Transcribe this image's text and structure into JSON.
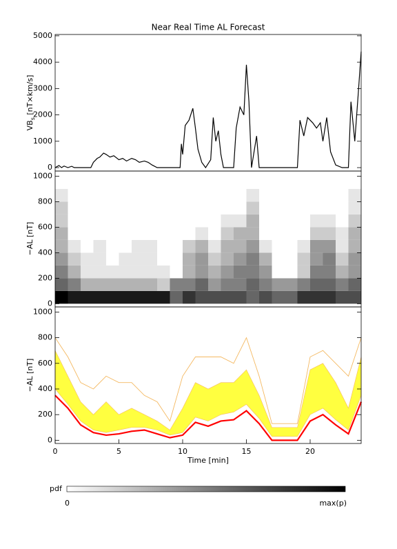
{
  "chart_data": [
    {
      "type": "line",
      "title": "Near Real Time AL Forecast",
      "ylabel": [
        "VB",
        "s",
        " [nT×km/s]"
      ],
      "x": [
        0,
        0.3,
        0.5,
        0.7,
        1.0,
        1.3,
        1.5,
        2.8,
        3.0,
        3.3,
        3.5,
        3.8,
        4.0,
        4.3,
        4.6,
        5.0,
        5.3,
        5.6,
        6.0,
        6.3,
        6.6,
        7.0,
        7.3,
        7.6,
        8.0,
        9.8,
        9.9,
        10.0,
        10.2,
        10.5,
        10.8,
        11.0,
        11.2,
        11.5,
        11.8,
        12.2,
        12.4,
        12.6,
        12.8,
        13.0,
        13.2,
        14.0,
        14.2,
        14.5,
        14.8,
        15.0,
        15.2,
        15.4,
        15.8,
        16.0,
        19.0,
        19.2,
        19.5,
        19.8,
        20.2,
        20.5,
        20.8,
        21.0,
        21.3,
        21.6,
        22.0,
        22.5,
        23.0,
        23.2,
        23.5,
        23.8,
        24.0
      ],
      "values": [
        0,
        80,
        0,
        60,
        0,
        50,
        0,
        0,
        200,
        350,
        400,
        550,
        500,
        400,
        450,
        300,
        350,
        250,
        350,
        300,
        200,
        250,
        200,
        100,
        0,
        0,
        900,
        500,
        1600,
        1800,
        2250,
        1500,
        700,
        200,
        0,
        300,
        1900,
        1000,
        1400,
        500,
        0,
        0,
        1500,
        2300,
        2000,
        3900,
        2500,
        0,
        1200,
        0,
        0,
        1800,
        1200,
        1900,
        1700,
        1500,
        1700,
        1000,
        1900,
        600,
        100,
        0,
        0,
        2500,
        1000,
        3000,
        4400
      ],
      "color": "#000000",
      "xlim": [
        0,
        24
      ],
      "ylim": [
        -130,
        5050
      ],
      "yticks": [
        0,
        1000,
        2000,
        3000,
        4000,
        5000
      ]
    },
    {
      "type": "heatmap",
      "ylabel": "−AL [nT]",
      "xbins": [
        0,
        1,
        2,
        3,
        4,
        5,
        6,
        7,
        8,
        9,
        10,
        11,
        12,
        13,
        14,
        15,
        16,
        17,
        18,
        19,
        20,
        21,
        22,
        23,
        24
      ],
      "ybins": [
        0,
        100,
        200,
        300,
        400,
        500,
        600,
        700,
        800,
        900,
        1000
      ],
      "z": [
        [
          1,
          0.6,
          0.5,
          0.4,
          0.3,
          0.3,
          0.2,
          0.2,
          0.1,
          0
        ],
        [
          0.9,
          0.5,
          0.3,
          0.2,
          0.1,
          0,
          0,
          0,
          0,
          0
        ],
        [
          0.9,
          0.3,
          0.1,
          0.1,
          0,
          0,
          0,
          0,
          0,
          0
        ],
        [
          0.9,
          0.3,
          0.1,
          0.1,
          0.1,
          0,
          0,
          0,
          0,
          0
        ],
        [
          0.9,
          0.3,
          0.1,
          0,
          0,
          0,
          0,
          0,
          0,
          0
        ],
        [
          0.9,
          0.3,
          0.1,
          0.1,
          0,
          0,
          0,
          0,
          0,
          0
        ],
        [
          0.9,
          0.3,
          0.1,
          0.1,
          0.1,
          0,
          0,
          0,
          0,
          0
        ],
        [
          0.9,
          0.3,
          0.1,
          0.1,
          0.1,
          0,
          0,
          0,
          0,
          0
        ],
        [
          0.9,
          0.2,
          0.1,
          0,
          0,
          0,
          0,
          0,
          0,
          0
        ],
        [
          0.6,
          0.5,
          0,
          0,
          0,
          0,
          0,
          0,
          0,
          0
        ],
        [
          0.8,
          0.5,
          0.3,
          0.3,
          0.2,
          0,
          0,
          0,
          0,
          0
        ],
        [
          0.7,
          0.6,
          0.4,
          0.4,
          0.3,
          0.1,
          0,
          0,
          0,
          0
        ],
        [
          0.7,
          0.4,
          0.3,
          0.2,
          0.1,
          0,
          0,
          0,
          0,
          0
        ],
        [
          0.7,
          0.5,
          0.4,
          0.3,
          0.3,
          0.2,
          0.1,
          0,
          0,
          0
        ],
        [
          0.7,
          0.5,
          0.5,
          0.4,
          0.3,
          0.3,
          0.1,
          0,
          0,
          0
        ],
        [
          0.6,
          0.6,
          0.5,
          0.5,
          0.4,
          0.3,
          0.3,
          0.2,
          0.1,
          0
        ],
        [
          0.7,
          0.5,
          0.4,
          0.3,
          0.1,
          0,
          0,
          0,
          0,
          0
        ],
        [
          0.6,
          0.4,
          0,
          0,
          0,
          0,
          0,
          0,
          0,
          0
        ],
        [
          0.6,
          0.4,
          0,
          0,
          0,
          0,
          0,
          0,
          0,
          0
        ],
        [
          0.8,
          0.5,
          0.2,
          0.2,
          0.1,
          0,
          0,
          0,
          0,
          0
        ],
        [
          0.8,
          0.6,
          0.5,
          0.4,
          0.4,
          0.2,
          0.1,
          0,
          0,
          0
        ],
        [
          0.8,
          0.6,
          0.5,
          0.5,
          0.4,
          0.2,
          0.1,
          0,
          0,
          0
        ],
        [
          0.7,
          0.5,
          0.3,
          0.2,
          0.1,
          0.1,
          0,
          0,
          0,
          0
        ],
        [
          0.7,
          0.6,
          0.4,
          0.4,
          0.3,
          0.3,
          0.2,
          0.1,
          0.1,
          0
        ]
      ],
      "xlim": [
        0,
        24
      ],
      "ylim": [
        -25,
        1040
      ],
      "yticks": [
        0,
        200,
        400,
        600,
        800,
        1000
      ],
      "colorbar": {
        "label": "pdf",
        "ticks": [
          "0",
          "max(p)"
        ]
      }
    },
    {
      "type": "band",
      "ylabel": "−AL [nT]",
      "xlabel": "Time [min]",
      "x": [
        0,
        1,
        2,
        3,
        4,
        5,
        6,
        7,
        8,
        9,
        10,
        11,
        12,
        13,
        14,
        15,
        16,
        17,
        18,
        19,
        20,
        21,
        22,
        23,
        24
      ],
      "bands": [
        {
          "color": "#ffff40",
          "lower": [
            400,
            280,
            150,
            80,
            60,
            80,
            100,
            100,
            80,
            40,
            60,
            180,
            150,
            200,
            220,
            280,
            170,
            30,
            30,
            30,
            200,
            250,
            160,
            80,
            350
          ],
          "upper": [
            700,
            500,
            300,
            200,
            300,
            200,
            250,
            200,
            150,
            80,
            250,
            450,
            400,
            450,
            450,
            550,
            350,
            100,
            100,
            100,
            550,
            600,
            450,
            250,
            650
          ]
        }
      ],
      "series": [
        {
          "color": "#f4b860",
          "values": [
            800,
            650,
            450,
            400,
            500,
            450,
            450,
            350,
            300,
            150,
            500,
            650,
            650,
            650,
            600,
            800,
            500,
            130,
            130,
            130,
            650,
            700,
            600,
            500,
            800
          ]
        },
        {
          "color": "#ff0000",
          "values": [
            350,
            250,
            120,
            60,
            40,
            50,
            70,
            80,
            50,
            20,
            40,
            140,
            110,
            150,
            160,
            230,
            130,
            0,
            0,
            0,
            150,
            200,
            120,
            50,
            300
          ]
        }
      ],
      "xlim": [
        0,
        24
      ],
      "ylim": [
        -25,
        1040
      ],
      "xticks": [
        0,
        5,
        10,
        15,
        20
      ],
      "yticks": [
        0,
        200,
        400,
        600,
        800,
        1000
      ]
    }
  ]
}
